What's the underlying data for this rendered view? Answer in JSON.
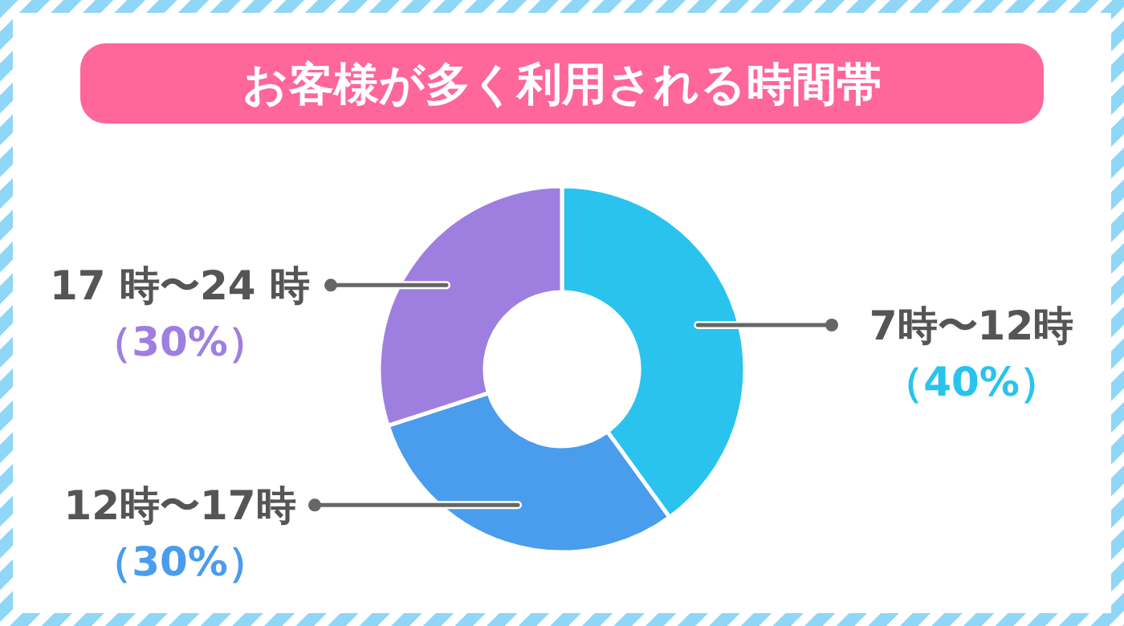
{
  "chart_data": {
    "type": "donut",
    "title": "お客様が多く利用される時間帯",
    "categories": [
      "7時〜12時",
      "12時〜17時",
      "17 時〜24 時"
    ],
    "values": [
      40,
      30,
      30
    ],
    "colors": [
      "#29c3ee",
      "#4a9cec",
      "#9e7fe0"
    ],
    "value_labels": [
      "（40%）",
      "（30%）",
      "（30%）"
    ]
  }
}
